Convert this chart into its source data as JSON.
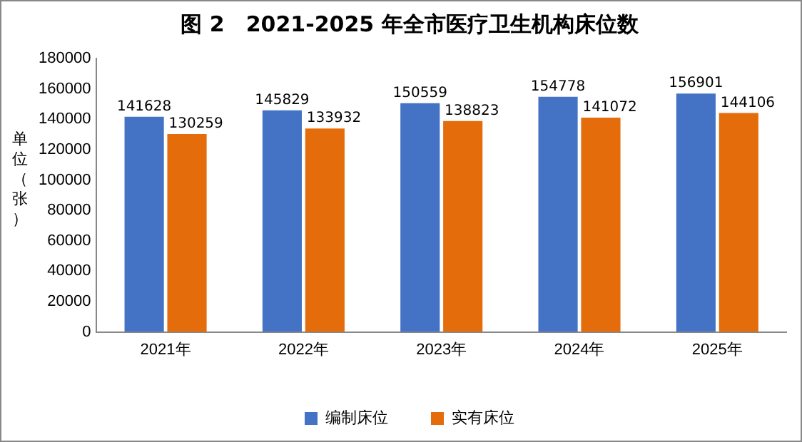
{
  "chart_data": {
    "type": "bar",
    "title": "图 2　2021-2025 年全市医疗卫生机构床位数",
    "ylabel": "单位（张）",
    "categories": [
      "2021年",
      "2022年",
      "2023年",
      "2024年",
      "2025年"
    ],
    "series": [
      {
        "name": "编制床位",
        "color": "#4472c4",
        "values": [
          141628,
          145829,
          150559,
          154778,
          156901
        ]
      },
      {
        "name": "实有床位",
        "color": "#e46c0a",
        "values": [
          130259,
          133932,
          138823,
          141072,
          144106
        ]
      }
    ],
    "ylim": [
      0,
      180000
    ],
    "yticks": [
      0,
      20000,
      40000,
      60000,
      80000,
      100000,
      120000,
      140000,
      160000,
      180000
    ],
    "grid": false,
    "legend": "bottom",
    "data_labels": true
  }
}
